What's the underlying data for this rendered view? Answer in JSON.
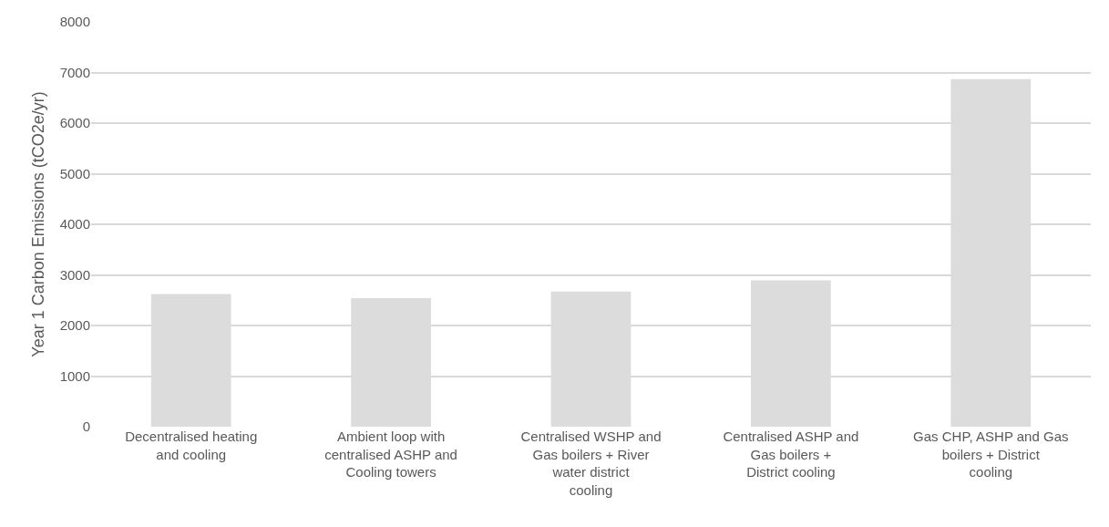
{
  "chart_data": {
    "type": "bar",
    "ylabel": "Year 1 Carbon Emissions (tCO2e/yr)",
    "categories": [
      "Decentralised heating and cooling",
      "Ambient loop with centralised ASHP and Cooling towers",
      "Centralised WSHP and Gas boilers + River water district cooling",
      "Centralised ASHP and Gas boilers + District cooling",
      "Gas CHP, ASHP and Gas boilers + District cooling"
    ],
    "values": [
      2620,
      2540,
      2670,
      2890,
      6870
    ],
    "color": "#dcdcdc",
    "ylim": [
      0,
      8000
    ],
    "yticks": [
      0,
      1000,
      2000,
      3000,
      4000,
      5000,
      6000,
      7000,
      8000
    ],
    "grid": "y"
  }
}
